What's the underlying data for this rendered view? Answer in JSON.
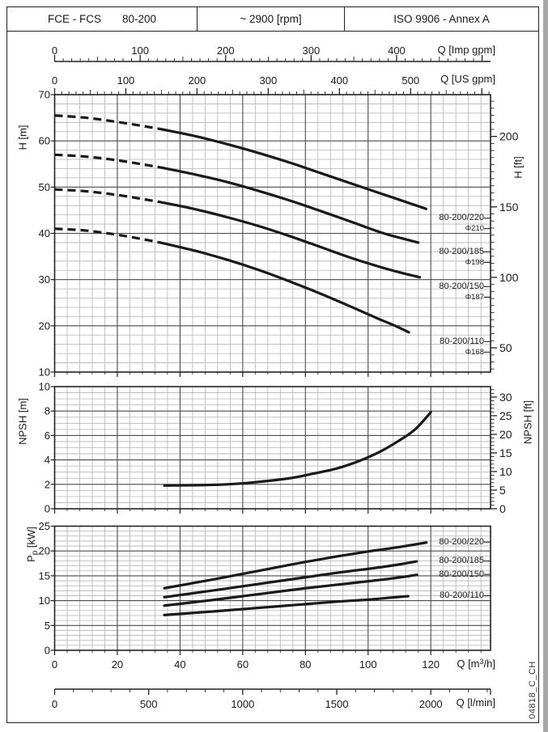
{
  "header": {
    "family": "FCE - FCS",
    "size": "80-200",
    "speed": "~ 2900 [rpm]",
    "standard": "ISO 9906 - Annex A"
  },
  "side_code": "04818_C_CH",
  "top_axes": {
    "imp": {
      "unit": "Q [Imp gpm]",
      "labels": [
        0,
        100,
        200,
        300,
        400
      ],
      "minor_step": 10,
      "mid_step": 50,
      "label_step": 100,
      "max": 505,
      "gpm_per_m3h": 3.66667
    },
    "us": {
      "unit": "Q [US gpm]",
      "labels": [
        0,
        100,
        200,
        300,
        400,
        500
      ],
      "minor_step": 10,
      "mid_step": 50,
      "label_step": 100,
      "max": 610,
      "gpm_per_m3h": 4.40287
    }
  },
  "bottom_axes": {
    "m3h": {
      "unit_parts": [
        "Q [m",
        "3",
        "/h]"
      ],
      "labels": [
        0,
        20,
        40,
        60,
        80,
        100,
        120
      ]
    },
    "lmin": {
      "unit": "Q [l/min]",
      "labels": [
        0,
        500,
        1000,
        1500,
        2000
      ],
      "minor_step": 100,
      "major_step": 500,
      "max": 2300,
      "lmin_per_m3h": 16.6667
    }
  },
  "vertical_labels": {
    "head_left": "H [m]",
    "head_right": "H [ft]",
    "npsh_left": "NPSH [m]",
    "npsh_right": "NPSH [ft]",
    "power_left_parts": [
      "P",
      "p",
      " [kW]"
    ]
  },
  "chart_data": [
    {
      "id": "head",
      "type": "line",
      "title": "Head vs flow curves",
      "xlabel": "Q [m3/h]",
      "ylabel": "H [m]",
      "xlim": [
        0,
        139
      ],
      "ylim": [
        10,
        70
      ],
      "x_major": 20,
      "x_minor": 4,
      "y_major": 10,
      "y_minor": 2,
      "grid": true,
      "yticks_left": [
        70,
        60,
        50,
        40,
        30,
        20,
        10
      ],
      "right_axis": {
        "unit": "ft",
        "m_per_unit": 0.3048,
        "labels": [
          50,
          100,
          150,
          200
        ],
        "minor_step": 5,
        "label_step": 50
      },
      "dash_until": 35,
      "series": [
        {
          "name": "80-200/220",
          "impeller": "Φ210",
          "points": [
            [
              0,
              65.5
            ],
            [
              10,
              65.0
            ],
            [
              20,
              64.1
            ],
            [
              30,
              63.0
            ],
            [
              35,
              62.4
            ],
            [
              45,
              61.0
            ],
            [
              55,
              59.3
            ],
            [
              65,
              57.4
            ],
            [
              75,
              55.3
            ],
            [
              85,
              53.0
            ],
            [
              95,
              50.7
            ],
            [
              105,
              48.4
            ],
            [
              112,
              46.8
            ],
            [
              118.5,
              45.3
            ]
          ]
        },
        {
          "name": "80-200/185",
          "impeller": "Φ198",
          "points": [
            [
              0,
              57.0
            ],
            [
              10,
              56.6
            ],
            [
              20,
              55.8
            ],
            [
              30,
              54.7
            ],
            [
              35,
              54.1
            ],
            [
              45,
              52.7
            ],
            [
              55,
              51.1
            ],
            [
              65,
              49.2
            ],
            [
              75,
              47.1
            ],
            [
              85,
              44.8
            ],
            [
              95,
              42.4
            ],
            [
              105,
              40.0
            ],
            [
              111,
              38.9
            ],
            [
              116,
              38.0
            ]
          ]
        },
        {
          "name": "80-200/150",
          "impeller": "Φ187",
          "points": [
            [
              0,
              49.5
            ],
            [
              10,
              49.1
            ],
            [
              20,
              48.3
            ],
            [
              30,
              47.2
            ],
            [
              35,
              46.6
            ],
            [
              45,
              45.2
            ],
            [
              55,
              43.5
            ],
            [
              65,
              41.6
            ],
            [
              75,
              39.4
            ],
            [
              85,
              37.0
            ],
            [
              95,
              34.6
            ],
            [
              105,
              32.5
            ],
            [
              111,
              31.4
            ],
            [
              116.5,
              30.5
            ]
          ]
        },
        {
          "name": "80-200/110",
          "impeller": "Φ168",
          "points": [
            [
              0,
              41.0
            ],
            [
              10,
              40.6
            ],
            [
              20,
              39.7
            ],
            [
              30,
              38.5
            ],
            [
              35,
              37.8
            ],
            [
              45,
              36.2
            ],
            [
              55,
              34.3
            ],
            [
              65,
              32.1
            ],
            [
              75,
              29.6
            ],
            [
              85,
              26.9
            ],
            [
              95,
              24.0
            ],
            [
              103,
              21.6
            ],
            [
              108,
              20.2
            ],
            [
              113,
              18.6
            ]
          ]
        }
      ]
    },
    {
      "id": "npsh",
      "type": "line",
      "title": "NPSH vs flow",
      "xlabel": "Q [m3/h]",
      "ylabel": "NPSH [m]",
      "xlim": [
        0,
        139
      ],
      "ylim": [
        0,
        10
      ],
      "x_major": 20,
      "x_minor": 4,
      "y_major": 2,
      "y_minor": 0.5,
      "grid": true,
      "yticks_left": [
        10,
        8,
        6,
        4,
        2,
        0
      ],
      "right_axis": {
        "unit": "ft",
        "m_per_unit": 0.3048,
        "labels": [
          0,
          5,
          10,
          15,
          20,
          25,
          30
        ],
        "minor_step": 1,
        "label_step": 5
      },
      "series": [
        {
          "name": "NPSH",
          "points": [
            [
              35,
              1.9
            ],
            [
              45,
              1.93
            ],
            [
              55,
              2.0
            ],
            [
              65,
              2.2
            ],
            [
              75,
              2.5
            ],
            [
              82,
              2.85
            ],
            [
              90,
              3.3
            ],
            [
              97,
              3.9
            ],
            [
              104,
              4.7
            ],
            [
              110,
              5.6
            ],
            [
              115,
              6.5
            ],
            [
              120,
              7.9
            ]
          ]
        }
      ]
    },
    {
      "id": "power",
      "type": "line",
      "title": "Power vs flow curves",
      "xlabel": "Q [m3/h]",
      "ylabel": "Pp [kW]",
      "xlim": [
        0,
        139
      ],
      "ylim": [
        0,
        25
      ],
      "x_major": 20,
      "x_minor": 4,
      "y_major": 5,
      "y_minor": 1,
      "grid": true,
      "yticks_left": [
        25,
        20,
        15,
        10,
        5,
        0
      ],
      "series": [
        {
          "name": "80-200/220",
          "points": [
            [
              35,
              12.5
            ],
            [
              50,
              14.2
            ],
            [
              60,
              15.4
            ],
            [
              70,
              16.6
            ],
            [
              80,
              17.8
            ],
            [
              90,
              18.9
            ],
            [
              100,
              19.9
            ],
            [
              110,
              20.8
            ],
            [
              118.6,
              21.7
            ]
          ]
        },
        {
          "name": "80-200/185",
          "points": [
            [
              35,
              10.7
            ],
            [
              50,
              12.0
            ],
            [
              60,
              12.9
            ],
            [
              70,
              13.8
            ],
            [
              80,
              14.7
            ],
            [
              90,
              15.6
            ],
            [
              100,
              16.4
            ],
            [
              108,
              17.1
            ],
            [
              115.5,
              17.9
            ]
          ]
        },
        {
          "name": "80-200/150",
          "points": [
            [
              35,
              9.0
            ],
            [
              50,
              10.1
            ],
            [
              60,
              10.9
            ],
            [
              70,
              11.7
            ],
            [
              80,
              12.5
            ],
            [
              90,
              13.2
            ],
            [
              100,
              13.9
            ],
            [
              108,
              14.5
            ],
            [
              115.6,
              15.2
            ]
          ]
        },
        {
          "name": "80-200/110",
          "points": [
            [
              35,
              7.1
            ],
            [
              50,
              7.8
            ],
            [
              60,
              8.3
            ],
            [
              70,
              8.8
            ],
            [
              80,
              9.3
            ],
            [
              90,
              9.8
            ],
            [
              100,
              10.2
            ],
            [
              107,
              10.6
            ],
            [
              112.8,
              10.9
            ]
          ]
        }
      ]
    }
  ]
}
